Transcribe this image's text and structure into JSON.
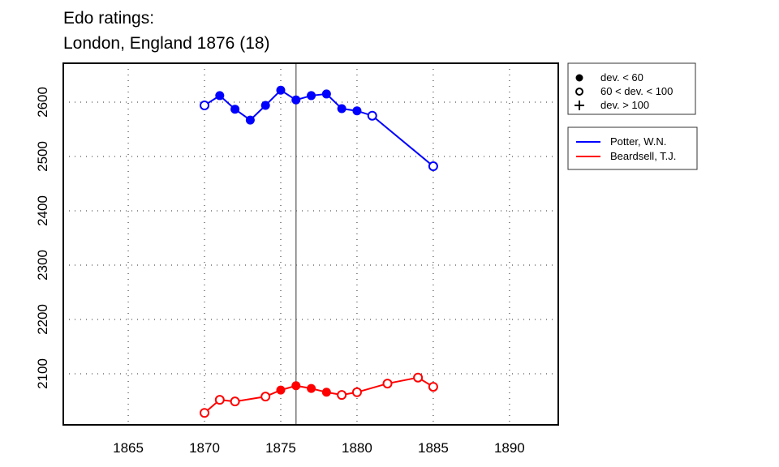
{
  "chart_data": {
    "type": "line",
    "title_line1": "Edo ratings:",
    "title_line2": "London, England 1876 (18)",
    "xlabel": "",
    "ylabel": "",
    "xlim": [
      1860.74,
      1893.2
    ],
    "ylim": [
      2006,
      2671.6
    ],
    "x_ticks": [
      1865,
      1870,
      1875,
      1880,
      1885,
      1890
    ],
    "y_ticks": [
      2100,
      2200,
      2300,
      2400,
      2500,
      2600
    ],
    "grid": "dotted",
    "marker_line_x": 1876,
    "legend_markers": {
      "position": "right",
      "items": [
        {
          "symbol": "filled-circle",
          "label": "dev. < 60"
        },
        {
          "symbol": "open-circle",
          "label": "60 < dev. < 100"
        },
        {
          "symbol": "plus",
          "label": "dev. > 100"
        }
      ]
    },
    "legend_series": {
      "position": "right",
      "items": [
        {
          "label": "Potter, W.N.",
          "color": "#0000ff"
        },
        {
          "label": "Beardsell, T.J.",
          "color": "#ff0000"
        }
      ]
    },
    "series": [
      {
        "name": "Potter, W.N.",
        "color": "#0000ff",
        "points": [
          {
            "x": 1870,
            "y": 2594,
            "marker": "open"
          },
          {
            "x": 1871,
            "y": 2612,
            "marker": "filled"
          },
          {
            "x": 1872,
            "y": 2587,
            "marker": "filled"
          },
          {
            "x": 1873,
            "y": 2567,
            "marker": "filled"
          },
          {
            "x": 1874,
            "y": 2594,
            "marker": "filled"
          },
          {
            "x": 1875,
            "y": 2622,
            "marker": "filled"
          },
          {
            "x": 1876,
            "y": 2604,
            "marker": "filled"
          },
          {
            "x": 1877,
            "y": 2612,
            "marker": "filled"
          },
          {
            "x": 1878,
            "y": 2615,
            "marker": "filled"
          },
          {
            "x": 1879,
            "y": 2588,
            "marker": "filled"
          },
          {
            "x": 1880,
            "y": 2584,
            "marker": "filled"
          },
          {
            "x": 1881,
            "y": 2575,
            "marker": "open"
          },
          {
            "x": 1885,
            "y": 2482,
            "marker": "open"
          }
        ]
      },
      {
        "name": "Beardsell, T.J.",
        "color": "#ff0000",
        "points": [
          {
            "x": 1870,
            "y": 2028,
            "marker": "open"
          },
          {
            "x": 1871,
            "y": 2052,
            "marker": "open"
          },
          {
            "x": 1872,
            "y": 2049,
            "marker": "open"
          },
          {
            "x": 1874,
            "y": 2058,
            "marker": "open"
          },
          {
            "x": 1875,
            "y": 2070,
            "marker": "filled"
          },
          {
            "x": 1876,
            "y": 2078,
            "marker": "filled"
          },
          {
            "x": 1877,
            "y": 2073,
            "marker": "filled"
          },
          {
            "x": 1878,
            "y": 2066,
            "marker": "filled"
          },
          {
            "x": 1879,
            "y": 2061,
            "marker": "open"
          },
          {
            "x": 1880,
            "y": 2066,
            "marker": "open"
          },
          {
            "x": 1882,
            "y": 2082,
            "marker": "open"
          },
          {
            "x": 1884,
            "y": 2093,
            "marker": "open"
          },
          {
            "x": 1885,
            "y": 2076,
            "marker": "open"
          }
        ]
      }
    ]
  }
}
